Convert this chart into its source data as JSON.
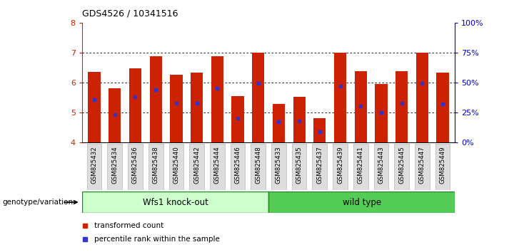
{
  "title": "GDS4526 / 10341516",
  "samples": [
    "GSM825432",
    "GSM825434",
    "GSM825436",
    "GSM825438",
    "GSM825440",
    "GSM825442",
    "GSM825444",
    "GSM825446",
    "GSM825448",
    "GSM825433",
    "GSM825435",
    "GSM825437",
    "GSM825439",
    "GSM825441",
    "GSM825443",
    "GSM825445",
    "GSM825447",
    "GSM825449"
  ],
  "bar_tops": [
    6.35,
    5.82,
    6.47,
    6.87,
    6.27,
    6.32,
    6.87,
    5.55,
    7.0,
    5.28,
    5.52,
    4.8,
    7.0,
    6.37,
    5.95,
    6.37,
    7.0,
    6.32
  ],
  "blue_markers": [
    5.42,
    4.92,
    5.52,
    5.77,
    5.3,
    5.3,
    5.8,
    4.8,
    5.97,
    4.68,
    4.72,
    4.35,
    5.87,
    5.22,
    5.0,
    5.3,
    5.97,
    5.28
  ],
  "bar_bottom": 4.0,
  "ylim": [
    4.0,
    8.0
  ],
  "yticks_left": [
    4,
    5,
    6,
    7,
    8
  ],
  "ytick_labels_right": [
    "0%",
    "25%",
    "50%",
    "75%",
    "100%"
  ],
  "group1_label": "Wfs1 knock-out",
  "group2_label": "wild type",
  "group1_count": 9,
  "group2_count": 9,
  "genotype_label": "genotype/variation",
  "bar_color": "#cc2200",
  "blue_color": "#3333cc",
  "group1_bg": "#ccffcc",
  "group2_bg": "#55cc55",
  "tick_bg": "#dddddd",
  "legend_red_label": "transformed count",
  "legend_blue_label": "percentile rank within the sample",
  "left_axis_color": "#cc2200",
  "right_axis_color": "#0000cc"
}
